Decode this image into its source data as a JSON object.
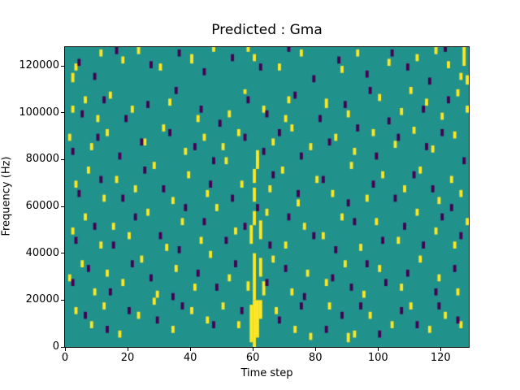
{
  "chart_data": {
    "type": "heatmap",
    "title": "Predicted : Gma",
    "xlabel": "Time step",
    "ylabel": "Frequency (Hz)",
    "xlim": [
      0,
      129
    ],
    "ylim": [
      0,
      128000
    ],
    "xticks": [
      0,
      20,
      40,
      60,
      80,
      100,
      120
    ],
    "yticks": [
      0,
      20000,
      40000,
      60000,
      80000,
      100000,
      120000
    ],
    "grid": false,
    "legend": "none",
    "colors": {
      "background": "#21918c",
      "high": "#fde725",
      "low": "#440154"
    },
    "cells_units": "each cell is [time_step, freq_start_kHz, freq_span_kHz]",
    "cells_high": [
      [
        2,
        113,
        4
      ],
      [
        3,
        118,
        3
      ],
      [
        11,
        124,
        3
      ],
      [
        18,
        121,
        3
      ],
      [
        23,
        125,
        3
      ],
      [
        30,
        118,
        3
      ],
      [
        40,
        121,
        4
      ],
      [
        47,
        126,
        2
      ],
      [
        58,
        126,
        2
      ],
      [
        60,
        122,
        3
      ],
      [
        68,
        118,
        3
      ],
      [
        75,
        124,
        3
      ],
      [
        88,
        117,
        3
      ],
      [
        93,
        124,
        3
      ],
      [
        103,
        120,
        3
      ],
      [
        112,
        122,
        3
      ],
      [
        118,
        125,
        3
      ],
      [
        122,
        119,
        3
      ],
      [
        127,
        120,
        8
      ],
      [
        128,
        112,
        4
      ],
      [
        126,
        114,
        3
      ],
      [
        2,
        100,
        3
      ],
      [
        6,
        104,
        3
      ],
      [
        10,
        96,
        3
      ],
      [
        14,
        106,
        3
      ],
      [
        21,
        100,
        3
      ],
      [
        33,
        103,
        3
      ],
      [
        42,
        96,
        3
      ],
      [
        52,
        98,
        3
      ],
      [
        57,
        108,
        2
      ],
      [
        63,
        100,
        3
      ],
      [
        70,
        96,
        3
      ],
      [
        71,
        104,
        3
      ],
      [
        83,
        102,
        4
      ],
      [
        90,
        98,
        3
      ],
      [
        100,
        105,
        3
      ],
      [
        107,
        99,
        3
      ],
      [
        110,
        108,
        3
      ],
      [
        115,
        103,
        3
      ],
      [
        120,
        97,
        3
      ],
      [
        125,
        107,
        3
      ],
      [
        128,
        100,
        3
      ],
      [
        1,
        88,
        3
      ],
      [
        8,
        84,
        3
      ],
      [
        13,
        90,
        3
      ],
      [
        25,
        86,
        3
      ],
      [
        31,
        92,
        3
      ],
      [
        38,
        82,
        3
      ],
      [
        44,
        88,
        3
      ],
      [
        50,
        84,
        3
      ],
      [
        55,
        90,
        3
      ],
      [
        61,
        80,
        4
      ],
      [
        66,
        86,
        3
      ],
      [
        72,
        92,
        3
      ],
      [
        78,
        84,
        3
      ],
      [
        86,
        88,
        3
      ],
      [
        92,
        82,
        3
      ],
      [
        98,
        90,
        3
      ],
      [
        105,
        85,
        3
      ],
      [
        111,
        91,
        3
      ],
      [
        117,
        83,
        3
      ],
      [
        124,
        89,
        3
      ],
      [
        3,
        68,
        3
      ],
      [
        7,
        74,
        3
      ],
      [
        12,
        62,
        3
      ],
      [
        16,
        70,
        3
      ],
      [
        22,
        66,
        3
      ],
      [
        28,
        76,
        3
      ],
      [
        34,
        61,
        3
      ],
      [
        39,
        72,
        3
      ],
      [
        45,
        64,
        3
      ],
      [
        51,
        78,
        3
      ],
      [
        56,
        68,
        3
      ],
      [
        60,
        62,
        6
      ],
      [
        60,
        70,
        6
      ],
      [
        61,
        76,
        5
      ],
      [
        65,
        66,
        3
      ],
      [
        69,
        74,
        3
      ],
      [
        74,
        60,
        3
      ],
      [
        80,
        70,
        3
      ],
      [
        85,
        64,
        3
      ],
      [
        91,
        76,
        3
      ],
      [
        96,
        62,
        3
      ],
      [
        101,
        72,
        3
      ],
      [
        108,
        66,
        3
      ],
      [
        113,
        74,
        3
      ],
      [
        119,
        61,
        3
      ],
      [
        123,
        70,
        3
      ],
      [
        126,
        64,
        3
      ],
      [
        2,
        48,
        3
      ],
      [
        6,
        54,
        3
      ],
      [
        11,
        42,
        3
      ],
      [
        15,
        50,
        3
      ],
      [
        20,
        46,
        3
      ],
      [
        26,
        56,
        3
      ],
      [
        32,
        41,
        3
      ],
      [
        37,
        52,
        3
      ],
      [
        43,
        44,
        3
      ],
      [
        48,
        58,
        3
      ],
      [
        54,
        48,
        3
      ],
      [
        59,
        44,
        8
      ],
      [
        60,
        52,
        6
      ],
      [
        62,
        46,
        8
      ],
      [
        64,
        56,
        3
      ],
      [
        70,
        42,
        3
      ],
      [
        76,
        50,
        3
      ],
      [
        82,
        46,
        3
      ],
      [
        88,
        54,
        3
      ],
      [
        94,
        41,
        3
      ],
      [
        99,
        52,
        3
      ],
      [
        106,
        44,
        3
      ],
      [
        112,
        56,
        3
      ],
      [
        118,
        48,
        3
      ],
      [
        124,
        42,
        3
      ],
      [
        128,
        52,
        3
      ],
      [
        1,
        28,
        3
      ],
      [
        5,
        34,
        3
      ],
      [
        9,
        22,
        3
      ],
      [
        13,
        30,
        3
      ],
      [
        18,
        26,
        3
      ],
      [
        24,
        36,
        3
      ],
      [
        29,
        21,
        3
      ],
      [
        35,
        32,
        3
      ],
      [
        41,
        24,
        3
      ],
      [
        46,
        38,
        3
      ],
      [
        52,
        28,
        3
      ],
      [
        58,
        24,
        4
      ],
      [
        60,
        20,
        20
      ],
      [
        62,
        30,
        8
      ],
      [
        63,
        22,
        6
      ],
      [
        66,
        36,
        3
      ],
      [
        72,
        22,
        3
      ],
      [
        77,
        30,
        3
      ],
      [
        83,
        26,
        3
      ],
      [
        89,
        34,
        3
      ],
      [
        95,
        21,
        3
      ],
      [
        100,
        32,
        3
      ],
      [
        107,
        24,
        3
      ],
      [
        113,
        36,
        3
      ],
      [
        119,
        28,
        3
      ],
      [
        125,
        22,
        3
      ],
      [
        3,
        14,
        3
      ],
      [
        8,
        8,
        3
      ],
      [
        12,
        16,
        3
      ],
      [
        17,
        4,
        3
      ],
      [
        23,
        12,
        3
      ],
      [
        28,
        18,
        3
      ],
      [
        34,
        6,
        3
      ],
      [
        40,
        14,
        3
      ],
      [
        45,
        10,
        3
      ],
      [
        50,
        16,
        3
      ],
      [
        55,
        8,
        3
      ],
      [
        59,
        2,
        16
      ],
      [
        60,
        0,
        20
      ],
      [
        61,
        4,
        16
      ],
      [
        62,
        12,
        8
      ],
      [
        67,
        14,
        3
      ],
      [
        73,
        6,
        3
      ],
      [
        78,
        3,
        3
      ],
      [
        84,
        16,
        3
      ],
      [
        90,
        2,
        4
      ],
      [
        92,
        4,
        3
      ],
      [
        97,
        12,
        3
      ],
      [
        104,
        8,
        3
      ],
      [
        110,
        16,
        3
      ],
      [
        116,
        6,
        3
      ],
      [
        121,
        12,
        3
      ],
      [
        126,
        8,
        3
      ]
    ],
    "cells_low": [
      [
        4,
        120,
        3
      ],
      [
        9,
        114,
        3
      ],
      [
        16,
        125,
        3
      ],
      [
        27,
        119,
        3
      ],
      [
        36,
        124,
        3
      ],
      [
        44,
        116,
        3
      ],
      [
        53,
        122,
        3
      ],
      [
        62,
        118,
        3
      ],
      [
        71,
        126,
        3
      ],
      [
        79,
        113,
        3
      ],
      [
        87,
        121,
        3
      ],
      [
        96,
        115,
        3
      ],
      [
        104,
        124,
        3
      ],
      [
        109,
        118,
        3
      ],
      [
        116,
        112,
        3
      ],
      [
        121,
        126,
        3
      ],
      [
        5,
        98,
        3
      ],
      [
        12,
        104,
        3
      ],
      [
        19,
        96,
        3
      ],
      [
        26,
        102,
        3
      ],
      [
        35,
        108,
        3
      ],
      [
        43,
        100,
        3
      ],
      [
        49,
        94,
        3
      ],
      [
        58,
        104,
        3
      ],
      [
        64,
        98,
        3
      ],
      [
        73,
        106,
        3
      ],
      [
        81,
        96,
        3
      ],
      [
        89,
        102,
        3
      ],
      [
        97,
        108,
        3
      ],
      [
        103,
        95,
        3
      ],
      [
        114,
        100,
        3
      ],
      [
        122,
        104,
        3
      ],
      [
        2,
        82,
        3
      ],
      [
        10,
        88,
        3
      ],
      [
        17,
        80,
        3
      ],
      [
        24,
        86,
        3
      ],
      [
        33,
        90,
        3
      ],
      [
        41,
        84,
        3
      ],
      [
        47,
        78,
        3
      ],
      [
        57,
        88,
        3
      ],
      [
        63,
        82,
        3
      ],
      [
        68,
        90,
        3
      ],
      [
        75,
        80,
        3
      ],
      [
        84,
        86,
        3
      ],
      [
        93,
        92,
        3
      ],
      [
        99,
        80,
        3
      ],
      [
        106,
        88,
        3
      ],
      [
        115,
        84,
        3
      ],
      [
        120,
        90,
        3
      ],
      [
        127,
        78,
        3
      ],
      [
        4,
        64,
        3
      ],
      [
        11,
        70,
        3
      ],
      [
        18,
        62,
        3
      ],
      [
        25,
        74,
        3
      ],
      [
        31,
        66,
        3
      ],
      [
        38,
        58,
        3
      ],
      [
        46,
        68,
        3
      ],
      [
        53,
        62,
        3
      ],
      [
        61,
        58,
        3
      ],
      [
        66,
        72,
        3
      ],
      [
        74,
        64,
        3
      ],
      [
        82,
        70,
        3
      ],
      [
        90,
        60,
        3
      ],
      [
        98,
        68,
        3
      ],
      [
        105,
        62,
        3
      ],
      [
        111,
        72,
        3
      ],
      [
        117,
        66,
        3
      ],
      [
        123,
        58,
        3
      ],
      [
        3,
        44,
        3
      ],
      [
        9,
        50,
        3
      ],
      [
        15,
        42,
        3
      ],
      [
        22,
        54,
        3
      ],
      [
        30,
        46,
        3
      ],
      [
        36,
        40,
        3
      ],
      [
        44,
        52,
        3
      ],
      [
        51,
        44,
        3
      ],
      [
        57,
        50,
        3
      ],
      [
        65,
        42,
        3
      ],
      [
        71,
        54,
        3
      ],
      [
        79,
        46,
        3
      ],
      [
        86,
        40,
        3
      ],
      [
        92,
        52,
        3
      ],
      [
        101,
        44,
        3
      ],
      [
        108,
        50,
        3
      ],
      [
        114,
        42,
        3
      ],
      [
        120,
        54,
        3
      ],
      [
        126,
        46,
        3
      ],
      [
        2,
        26,
        3
      ],
      [
        7,
        32,
        3
      ],
      [
        14,
        22,
        3
      ],
      [
        21,
        34,
        3
      ],
      [
        27,
        28,
        3
      ],
      [
        34,
        20,
        3
      ],
      [
        42,
        30,
        3
      ],
      [
        48,
        24,
        3
      ],
      [
        54,
        34,
        3
      ],
      [
        64,
        26,
        3
      ],
      [
        70,
        32,
        3
      ],
      [
        76,
        20,
        3
      ],
      [
        85,
        28,
        3
      ],
      [
        91,
        24,
        3
      ],
      [
        96,
        34,
        3
      ],
      [
        102,
        26,
        3
      ],
      [
        109,
        30,
        3
      ],
      [
        118,
        22,
        3
      ],
      [
        124,
        32,
        3
      ],
      [
        6,
        12,
        3
      ],
      [
        13,
        6,
        3
      ],
      [
        20,
        14,
        3
      ],
      [
        29,
        10,
        3
      ],
      [
        37,
        16,
        3
      ],
      [
        47,
        8,
        3
      ],
      [
        56,
        14,
        3
      ],
      [
        68,
        10,
        3
      ],
      [
        75,
        16,
        3
      ],
      [
        83,
        6,
        3
      ],
      [
        88,
        12,
        3
      ],
      [
        94,
        16,
        3
      ],
      [
        100,
        4,
        3
      ],
      [
        107,
        14,
        3
      ],
      [
        112,
        8,
        3
      ],
      [
        119,
        16,
        3
      ],
      [
        125,
        10,
        3
      ]
    ]
  }
}
